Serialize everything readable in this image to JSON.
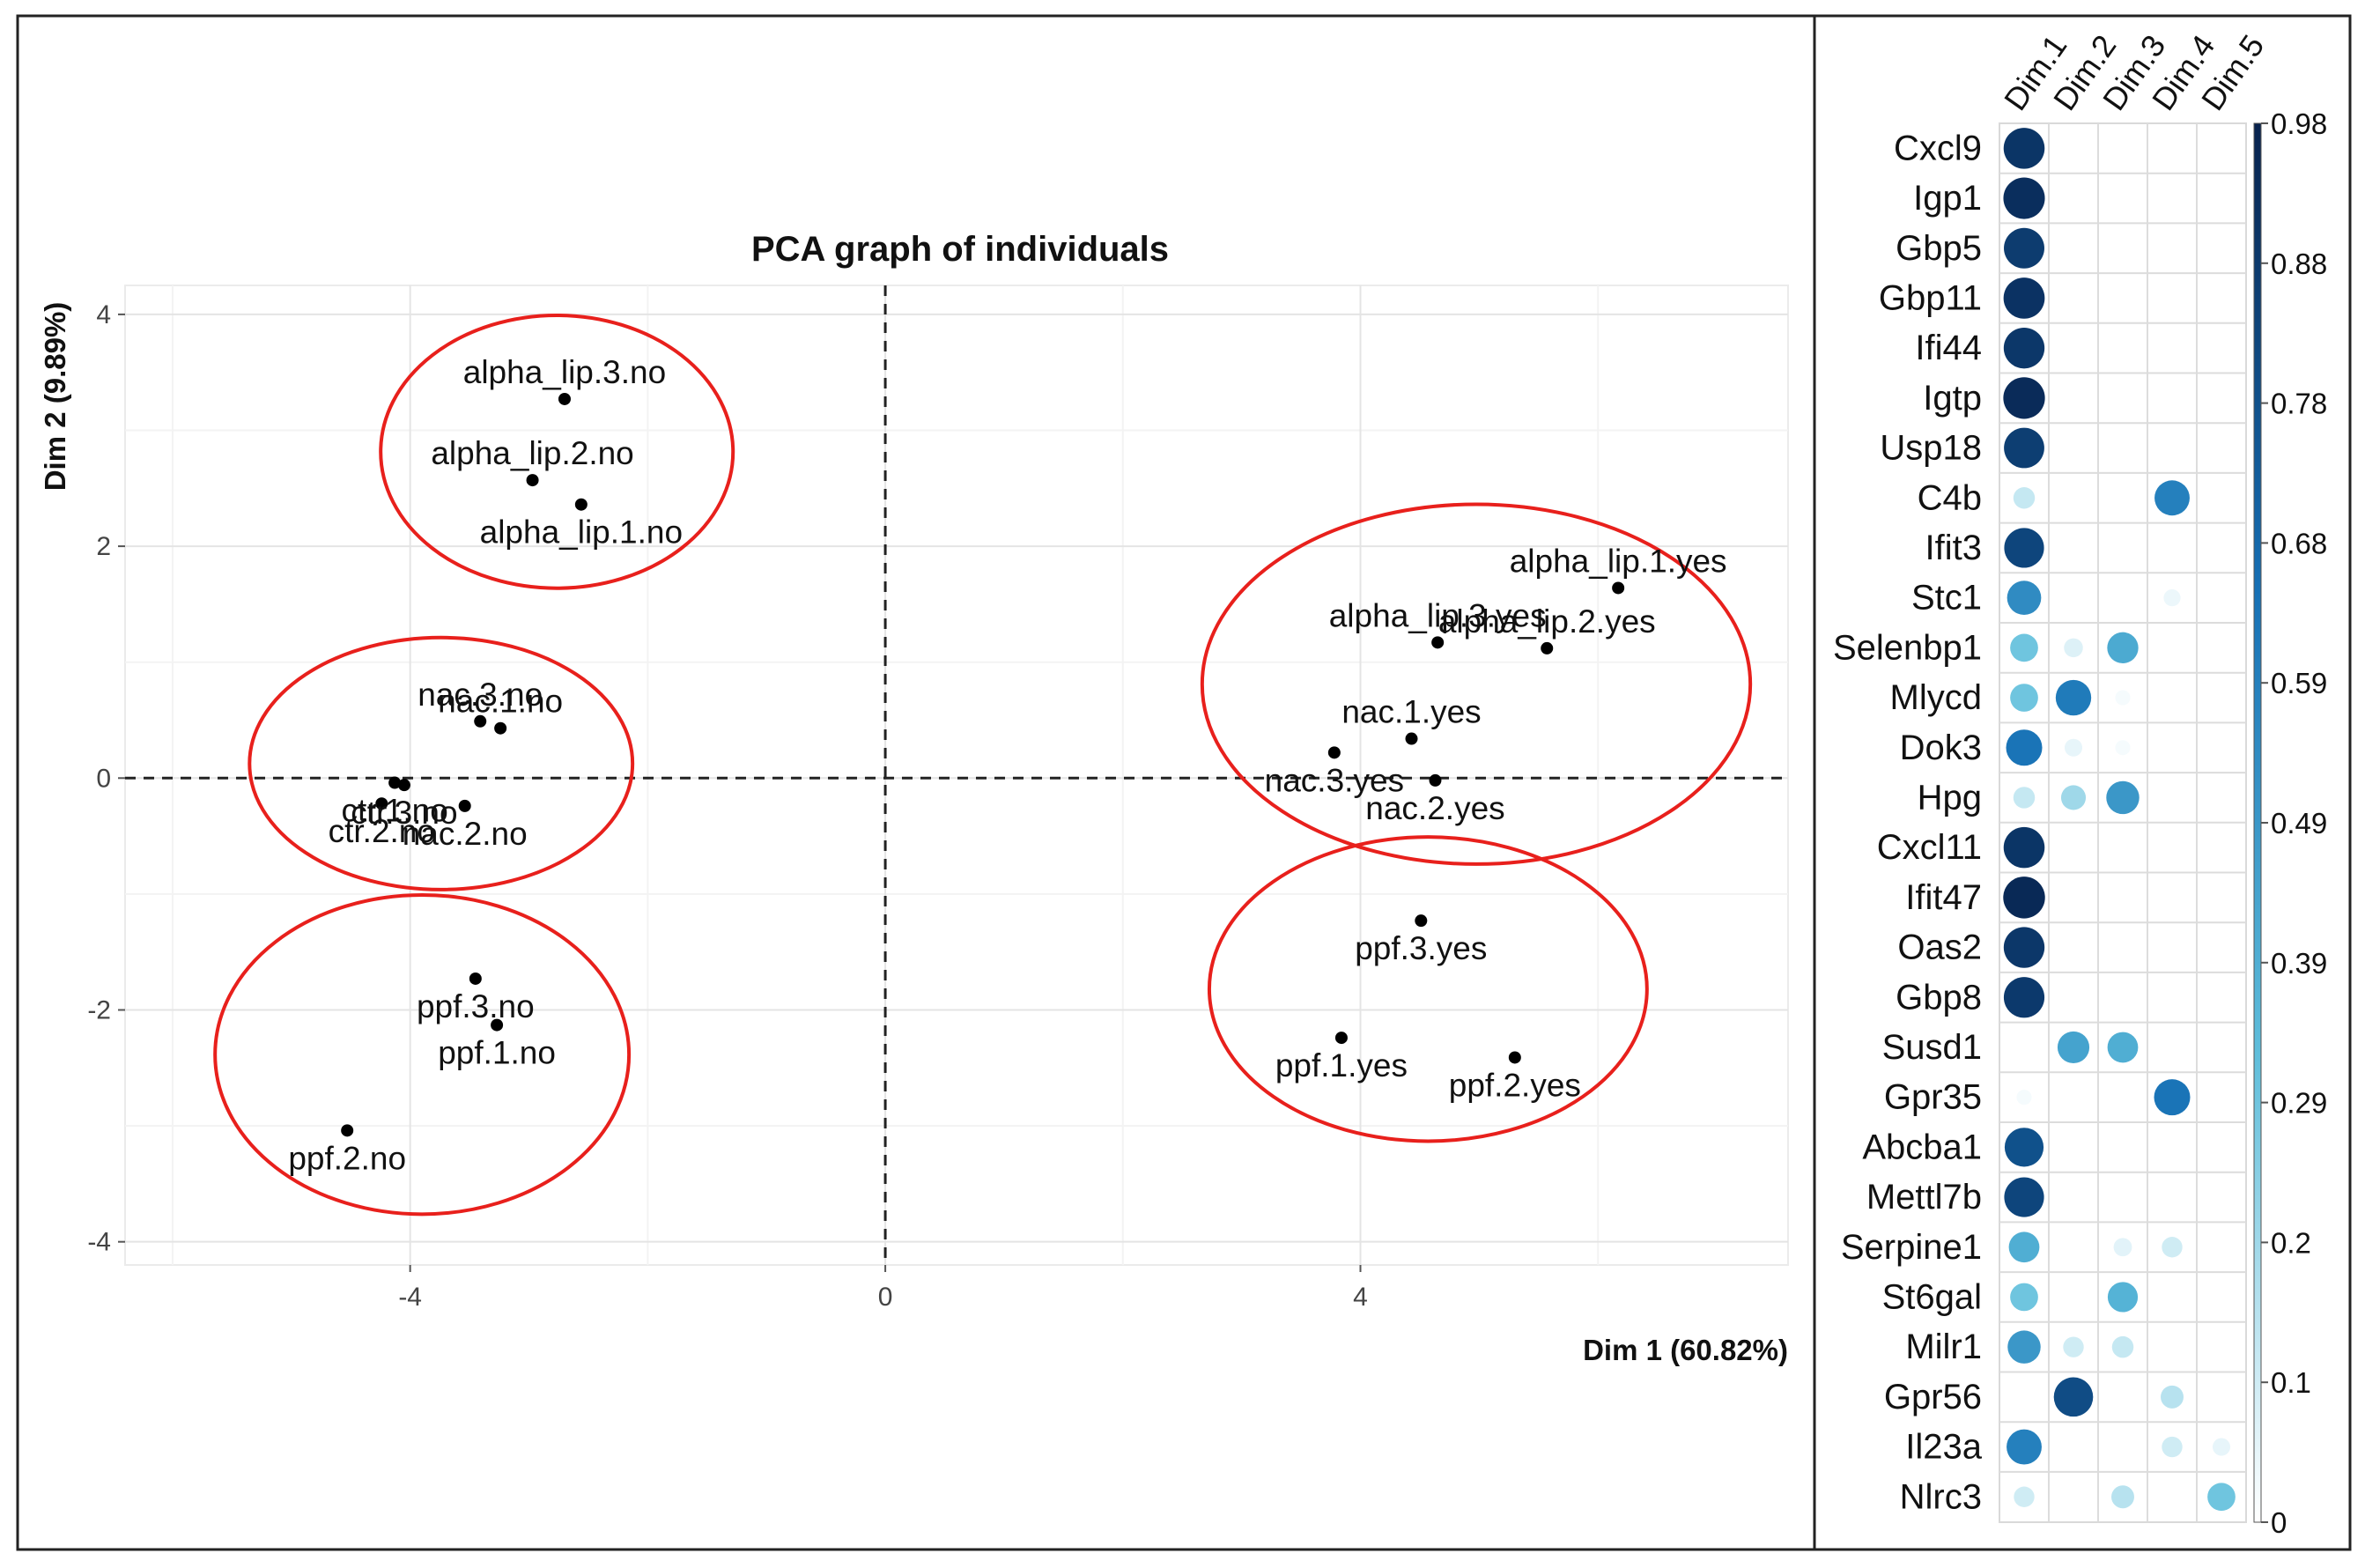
{
  "chart_data": [
    {
      "type": "scatter",
      "title": "PCA graph of individuals",
      "xlabel": "Dim 1 (60.82%)",
      "ylabel": "Dim 2 (9.89%)",
      "xlim": [
        -6.4,
        7.6
      ],
      "ylim": [
        -4.2,
        4.25
      ],
      "xticks": [
        -4,
        0,
        4
      ],
      "yticks": [
        -4,
        -2,
        0,
        2,
        4
      ],
      "grid": true,
      "reference_lines": {
        "x": 0,
        "y": 0,
        "style": "dashed"
      },
      "points": [
        {
          "label": "alpha_lip.3.no",
          "x": -2.7,
          "y": 3.27
        },
        {
          "label": "alpha_lip.2.no",
          "x": -2.97,
          "y": 2.57
        },
        {
          "label": "alpha_lip.1.no",
          "x": -2.56,
          "y": 2.36
        },
        {
          "label": "nac.3.no",
          "x": -3.41,
          "y": 0.49
        },
        {
          "label": "nac.1.no",
          "x": -3.24,
          "y": 0.43
        },
        {
          "label": "ctr.1.no",
          "x": -4.13,
          "y": -0.04
        },
        {
          "label": "ctr.3.no",
          "x": -4.05,
          "y": -0.06
        },
        {
          "label": "ctr.2.no",
          "x": -4.24,
          "y": -0.22
        },
        {
          "label": "nac.2.no",
          "x": -3.54,
          "y": -0.24
        },
        {
          "label": "ppf.3.no",
          "x": -3.45,
          "y": -1.73
        },
        {
          "label": "ppf.1.no",
          "x": -3.27,
          "y": -2.13
        },
        {
          "label": "ppf.2.no",
          "x": -4.53,
          "y": -3.04
        },
        {
          "label": "alpha_lip.1.yes",
          "x": 6.17,
          "y": 1.64
        },
        {
          "label": "alpha_lip.3.yes",
          "x": 4.65,
          "y": 1.17
        },
        {
          "label": "alpha_lip.2.yes",
          "x": 5.57,
          "y": 1.12
        },
        {
          "label": "nac.1.yes",
          "x": 4.43,
          "y": 0.34
        },
        {
          "label": "nac.3.yes",
          "x": 3.78,
          "y": 0.22
        },
        {
          "label": "nac.2.yes",
          "x": 4.63,
          "y": -0.02
        },
        {
          "label": "ppf.3.yes",
          "x": 4.51,
          "y": -1.23
        },
        {
          "label": "ppf.1.yes",
          "x": 3.84,
          "y": -2.24
        },
        {
          "label": "ppf.2.yes",
          "x": 5.3,
          "y": -2.41
        }
      ],
      "groups": [
        {
          "members": [
            "alpha_lip.1.no",
            "alpha_lip.2.no",
            "alpha_lip.3.no"
          ],
          "color": "#e8201c"
        },
        {
          "members": [
            "nac.1.no",
            "nac.2.no",
            "nac.3.no",
            "ctr.1.no",
            "ctr.2.no",
            "ctr.3.no"
          ],
          "color": "#e8201c"
        },
        {
          "members": [
            "ppf.1.no",
            "ppf.2.no",
            "ppf.3.no"
          ],
          "color": "#e8201c"
        },
        {
          "members": [
            "alpha_lip.1.yes",
            "alpha_lip.2.yes",
            "alpha_lip.3.yes",
            "nac.1.yes",
            "nac.2.yes",
            "nac.3.yes"
          ],
          "color": "#e8201c"
        },
        {
          "members": [
            "ppf.1.yes",
            "ppf.2.yes",
            "ppf.3.yes"
          ],
          "color": "#e8201c"
        }
      ]
    },
    {
      "type": "heatmap",
      "subtype": "correlation dot plot",
      "columns": [
        "Dim.1",
        "Dim.2",
        "Dim.3",
        "Dim.4",
        "Dim.5"
      ],
      "rows": [
        "Cxcl9",
        "Igp1",
        "Gbp5",
        "Gbp11",
        "Ifi44",
        "Igtp",
        "Usp18",
        "C4b",
        "Ifit3",
        "Stc1",
        "Selenbp1",
        "Mlycd",
        "Dok3",
        "Hpg",
        "Cxcl11",
        "Ifit47",
        "Oas2",
        "Gbp8",
        "Susd1",
        "Gpr35",
        "Abcba1",
        "Mettl7b",
        "Serpine1",
        "St6gal",
        "Milr1",
        "Gpr56",
        "Il23a",
        "Nlrc3"
      ],
      "values": [
        [
          0.92,
          0.0,
          0.0,
          0.0,
          0.0
        ],
        [
          0.95,
          0.0,
          0.0,
          0.0,
          0.0
        ],
        [
          0.89,
          0.0,
          0.0,
          0.0,
          0.0
        ],
        [
          0.93,
          0.0,
          0.0,
          0.0,
          0.0
        ],
        [
          0.91,
          0.0,
          0.0,
          0.0,
          0.0
        ],
        [
          0.96,
          0.0,
          0.0,
          0.0,
          0.0
        ],
        [
          0.88,
          0.0,
          0.0,
          0.0,
          0.0
        ],
        [
          0.12,
          0.0,
          0.0,
          0.6,
          0.0
        ],
        [
          0.85,
          0.0,
          0.0,
          0.0,
          0.0
        ],
        [
          0.55,
          0.0,
          0.0,
          0.04,
          0.0
        ],
        [
          0.3,
          0.07,
          0.42,
          0.0,
          0.0
        ],
        [
          0.3,
          0.62,
          0.02,
          0.0,
          0.0
        ],
        [
          0.65,
          0.05,
          0.02,
          0.0,
          0.0
        ],
        [
          0.12,
          0.2,
          0.5,
          0.0,
          0.0
        ],
        [
          0.92,
          0.0,
          0.0,
          0.0,
          0.0
        ],
        [
          0.97,
          0.0,
          0.0,
          0.0,
          0.0
        ],
        [
          0.91,
          0.0,
          0.0,
          0.0,
          0.0
        ],
        [
          0.9,
          0.0,
          0.0,
          0.0,
          0.0
        ],
        [
          0.0,
          0.45,
          0.4,
          0.0,
          0.0
        ],
        [
          0.02,
          0.0,
          0.0,
          0.65,
          0.0
        ],
        [
          0.8,
          0.0,
          0.0,
          0.0,
          0.0
        ],
        [
          0.85,
          0.0,
          0.0,
          0.0,
          0.0
        ],
        [
          0.4,
          0.0,
          0.06,
          0.1,
          0.0
        ],
        [
          0.3,
          0.0,
          0.38,
          0.0,
          0.0
        ],
        [
          0.5,
          0.1,
          0.12,
          0.0,
          0.0
        ],
        [
          0.0,
          0.82,
          0.0,
          0.15,
          0.0
        ],
        [
          0.6,
          0.0,
          0.0,
          0.1,
          0.05
        ],
        [
          0.1,
          0.0,
          0.15,
          0.0,
          0.3
        ]
      ],
      "legend": {
        "type": "colorbar",
        "placement": "right",
        "ticks": [
          "0.98",
          "0.88",
          "0.78",
          "0.68",
          "0.59",
          "0.49",
          "0.39",
          "0.29",
          "0.2",
          "0.1",
          "0"
        ],
        "colors": [
          "#ffffff",
          "#5fbedb",
          "#1670b5",
          "#08224d"
        ]
      }
    }
  ]
}
